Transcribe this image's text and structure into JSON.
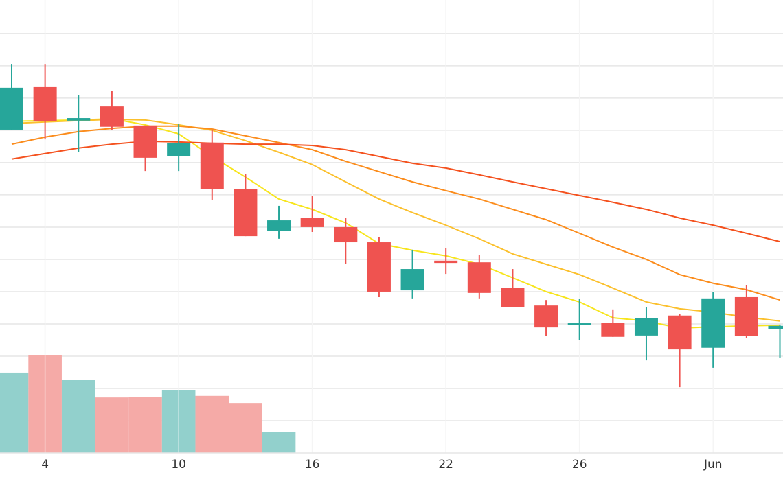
{
  "chart_data": {
    "type": "candlestick",
    "categories": [
      null,
      "4",
      null,
      null,
      null,
      "10",
      null,
      null,
      null,
      "16",
      null,
      null,
      null,
      "22",
      null,
      null,
      null,
      "26",
      null,
      null,
      null,
      "Jun",
      null,
      null
    ],
    "open": [
      10.02,
      11.34,
      10.3,
      10.74,
      10.15,
      9.19,
      9.62,
      8.19,
      6.89,
      7.28,
      7.0,
      6.53,
      5.04,
      5.96,
      5.91,
      5.11,
      4.57,
      3.98,
      4.04,
      3.64,
      4.26,
      3.26,
      4.83,
      3.83
    ],
    "high": [
      12.06,
      12.06,
      11.09,
      11.23,
      10.15,
      10.19,
      10.0,
      8.64,
      7.66,
      7.96,
      7.28,
      6.7,
      6.3,
      6.36,
      6.13,
      5.7,
      4.74,
      4.77,
      4.45,
      4.51,
      4.3,
      4.98,
      5.21,
      3.98
    ],
    "low": [
      10.02,
      9.72,
      9.32,
      10.02,
      8.74,
      8.74,
      7.83,
      6.72,
      6.64,
      6.85,
      5.87,
      4.83,
      4.79,
      5.55,
      4.79,
      4.53,
      3.62,
      3.49,
      3.6,
      2.87,
      2.04,
      2.64,
      3.57,
      2.94
    ],
    "close": [
      11.32,
      10.28,
      10.38,
      10.11,
      9.15,
      9.6,
      8.17,
      6.72,
      7.21,
      7.0,
      6.53,
      5.0,
      5.7,
      5.89,
      4.96,
      4.53,
      3.89,
      4.02,
      3.6,
      4.19,
      3.21,
      4.79,
      3.62,
      3.94
    ],
    "volume": [
      2.49,
      3.04,
      2.26,
      1.72,
      1.74,
      1.94,
      1.77,
      1.55,
      0.64,
      null,
      null,
      null,
      null,
      null,
      null,
      null,
      null,
      null,
      null,
      null,
      null,
      null,
      null,
      null
    ],
    "up_color": "#26a69a",
    "down_color": "#ef5350",
    "volume_up_color": "#92d0cc",
    "volume_down_color": "#f5aaa7",
    "series": [
      {
        "color": "#f7e51d",
        "values": [
          10.28,
          10.3,
          10.32,
          10.36,
          10.17,
          9.89,
          9.19,
          8.55,
          7.87,
          7.55,
          7.13,
          6.49,
          6.28,
          6.11,
          5.85,
          5.43,
          5.0,
          4.68,
          4.19,
          4.09,
          3.87,
          3.91,
          3.94,
          3.96
        ]
      },
      {
        "color": "#fbc02d",
        "values": [
          10.21,
          10.26,
          10.3,
          10.34,
          10.32,
          10.17,
          10.0,
          9.68,
          9.32,
          8.94,
          8.4,
          7.87,
          7.45,
          7.06,
          6.64,
          6.17,
          5.85,
          5.53,
          5.11,
          4.68,
          4.47,
          4.36,
          4.21,
          4.09
        ]
      },
      {
        "color": "#fb8c1c",
        "values": [
          9.57,
          9.79,
          9.96,
          10.06,
          10.13,
          10.13,
          10.04,
          9.83,
          9.62,
          9.4,
          9.04,
          8.72,
          8.4,
          8.13,
          7.87,
          7.55,
          7.23,
          6.81,
          6.38,
          6.0,
          5.53,
          5.26,
          5.06,
          4.74
        ]
      },
      {
        "color": "#f4511e",
        "values": [
          9.11,
          9.28,
          9.45,
          9.57,
          9.66,
          9.64,
          9.6,
          9.57,
          9.57,
          9.53,
          9.4,
          9.19,
          8.98,
          8.83,
          8.62,
          8.4,
          8.19,
          7.98,
          7.77,
          7.55,
          7.28,
          7.06,
          6.81,
          6.55
        ]
      }
    ],
    "ylim": [
      0,
      14.04
    ],
    "ygrid": [
      1,
      2,
      3,
      4,
      5,
      6,
      7,
      8,
      9,
      10,
      11,
      12,
      13
    ],
    "grid": true
  }
}
